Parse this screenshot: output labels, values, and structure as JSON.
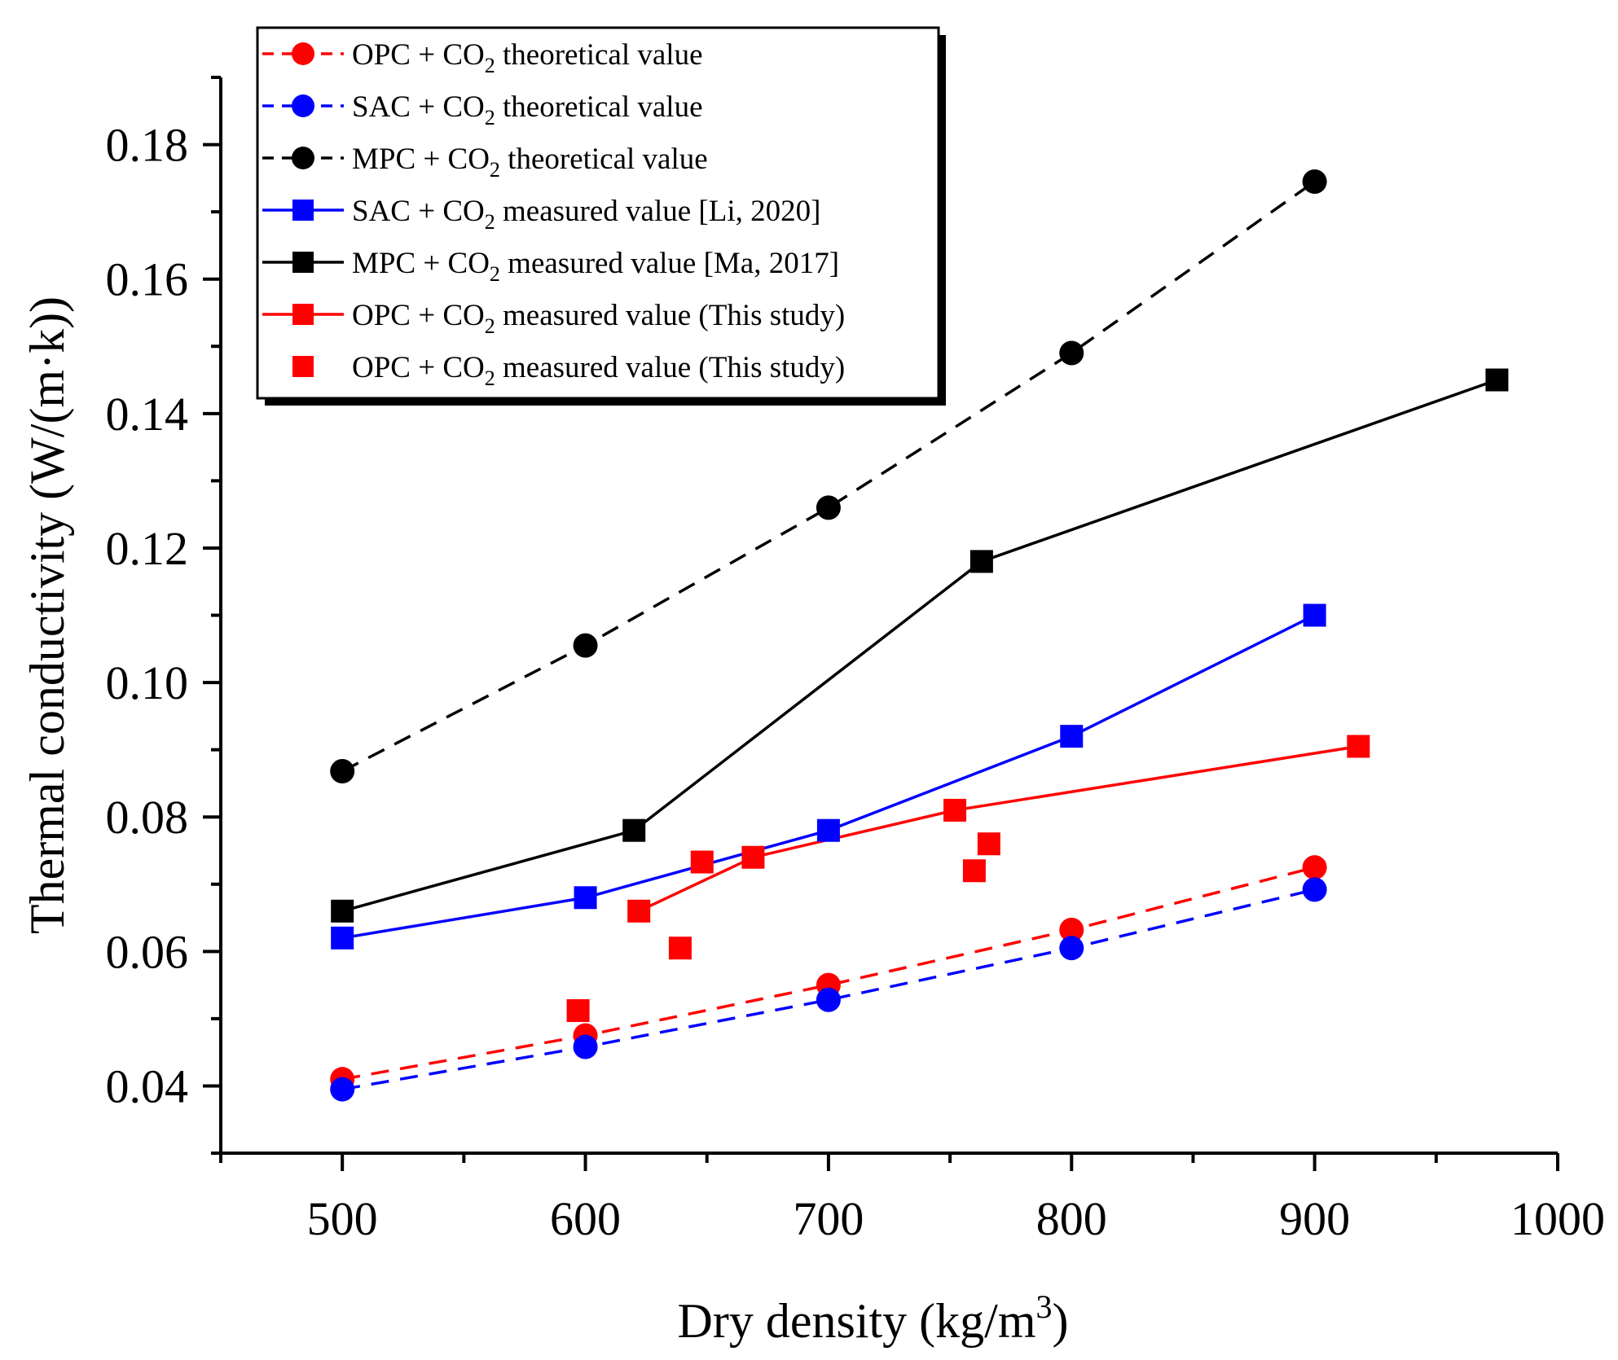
{
  "chart_data": {
    "type": "line",
    "xlabel": "Dry density (kg/m",
    "xlabel_sup": "3",
    "xlabel_end": ")",
    "ylabel": "Thermal conductivity (W/(m·k))",
    "xlim": [
      450,
      1000
    ],
    "ylim": [
      0.03,
      0.19
    ],
    "x_ticks": [
      500,
      600,
      700,
      800,
      900,
      1000
    ],
    "x_minor_ticks": [
      450,
      550,
      650,
      750,
      850,
      950
    ],
    "y_ticks": [
      0.04,
      0.06,
      0.08,
      0.1,
      0.12,
      0.14,
      0.16,
      0.18
    ],
    "y_tick_labels": [
      "0.04",
      "0.06",
      "0.08",
      "0.10",
      "0.12",
      "0.14",
      "0.16",
      "0.18"
    ],
    "y_minor_ticks": [
      0.03,
      0.05,
      0.07,
      0.09,
      0.11,
      0.13,
      0.15,
      0.17,
      0.19
    ],
    "legend_position": "top-left",
    "series": [
      {
        "name": "OPC + CO₂ theoretical value",
        "label_pre": "OPC + CO",
        "label_sub": "2",
        "label_post": " theoretical value",
        "color": "#ff0000",
        "line": "dashed",
        "marker": "circle",
        "x": [
          500,
          600,
          700,
          800,
          900
        ],
        "y": [
          0.041,
          0.0475,
          0.055,
          0.0632,
          0.0725
        ]
      },
      {
        "name": "SAC + CO₂ theoretical value",
        "label_pre": "SAC + CO",
        "label_sub": "2",
        "label_post": " theoretical value",
        "color": "#0000ff",
        "line": "dashed",
        "marker": "circle",
        "x": [
          500,
          600,
          700,
          800,
          900
        ],
        "y": [
          0.0395,
          0.0458,
          0.0528,
          0.0605,
          0.0692
        ]
      },
      {
        "name": "MPC + CO₂ theoretical value",
        "label_pre": "MPC + CO",
        "label_sub": "2",
        "label_post": " theoretical value",
        "color": "#000000",
        "line": "dashed",
        "marker": "circle",
        "x": [
          500,
          600,
          700,
          800,
          900
        ],
        "y": [
          0.0868,
          0.1055,
          0.126,
          0.149,
          0.1745
        ]
      },
      {
        "name": "SAC + CO₂ measured value [Li, 2020]",
        "label_pre": "SAC + CO",
        "label_sub": "2",
        "label_post": " measured value [Li, 2020]",
        "color": "#0000ff",
        "line": "solid",
        "marker": "square",
        "x": [
          500,
          600,
          700,
          800,
          900
        ],
        "y": [
          0.062,
          0.068,
          0.078,
          0.092,
          0.11
        ]
      },
      {
        "name": "MPC + CO₂ measured value [Ma, 2017]",
        "label_pre": "MPC + CO",
        "label_sub": "2",
        "label_post": " measured value [Ma, 2017]",
        "color": "#000000",
        "line": "solid",
        "marker": "square",
        "x": [
          500,
          620,
          763,
          975
        ],
        "y": [
          0.066,
          0.078,
          0.118,
          0.145
        ]
      },
      {
        "name": "OPC + CO₂ measured value (This study)",
        "label_pre": "OPC + CO",
        "label_sub": "2",
        "label_post": " measured value (This study)",
        "color": "#ff0000",
        "line": "solid",
        "marker": "square",
        "x": [
          622,
          669,
          752,
          918
        ],
        "y": [
          0.066,
          0.074,
          0.081,
          0.0905
        ]
      },
      {
        "name": "OPC + CO₂ measured value (This study)",
        "label_pre": "OPC + CO",
        "label_sub": "2",
        "label_post": " measured value (This study)",
        "color": "#ff0000",
        "line": "none",
        "marker": "square",
        "x": [
          597,
          639,
          648,
          760,
          766
        ],
        "y": [
          0.0512,
          0.0605,
          0.0733,
          0.072,
          0.076
        ]
      }
    ]
  }
}
